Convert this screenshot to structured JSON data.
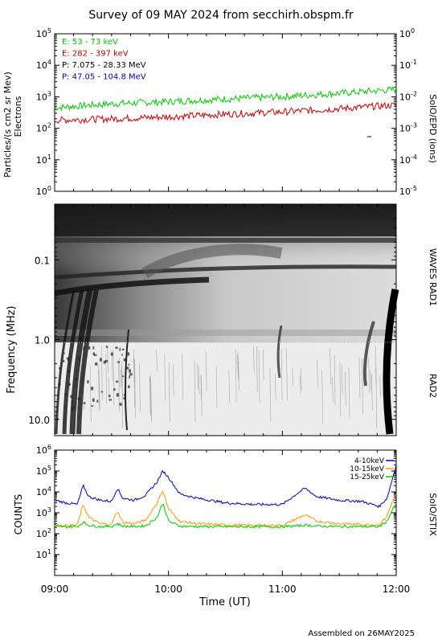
{
  "title": "Survey of 09 MAY 2024 from secchirh.obspm.fr",
  "footer": "Assembled on 26MAY2025",
  "colors": {
    "green": "#00cc00",
    "red": "#cc0000",
    "black": "#000000",
    "blue": "#0000cc",
    "orange": "#ff9900"
  },
  "chart_data": [
    {
      "type": "line",
      "ylabel": "Particles/(s cm2 sr Mev)",
      "ylabel2": "Electrons",
      "right_label": "SolO/EPD (ions)",
      "yscale": "log",
      "ylim": [
        1,
        100000
      ],
      "y_ticks": [
        "10^0",
        "10^1",
        "10^2",
        "10^3",
        "10^4",
        "10^5"
      ],
      "y2lim": [
        1e-05,
        1
      ],
      "y2_ticks": [
        "10^-5",
        "10^-4",
        "10^-3",
        "10^-2",
        "10^-1",
        "10^0"
      ],
      "xlim": [
        "09:00",
        "12:00"
      ],
      "legend": [
        {
          "name": "E: 53 - 73 keV",
          "color": "#00cc00"
        },
        {
          "name": "E: 282 - 397 keV",
          "color": "#cc0000"
        },
        {
          "name": "P: 7.075 - 28.33 MeV",
          "color": "#000000"
        },
        {
          "name": "P: 47.05 - 104.8 MeV",
          "color": "#0000cc"
        }
      ],
      "series": [
        {
          "name": "E: 53 - 73 keV",
          "x": [
            "09:00",
            "09:30",
            "10:00",
            "10:30",
            "11:00",
            "11:30",
            "12:00"
          ],
          "values": [
            450,
            600,
            700,
            850,
            1000,
            1300,
            1700
          ]
        },
        {
          "name": "E: 282 - 397 keV",
          "x": [
            "09:00",
            "09:30",
            "10:00",
            "10:30",
            "11:00",
            "11:30",
            "12:00"
          ],
          "values": [
            180,
            200,
            230,
            280,
            330,
            420,
            550
          ]
        }
      ]
    },
    {
      "type": "heatmap",
      "ylabel": "Frequency (MHz)",
      "right_labels": [
        "WAVES RAD1",
        "RAD2"
      ],
      "yscale": "log",
      "ylim": [
        0.02,
        16
      ],
      "y_ticks": [
        "0.1",
        "1.0",
        "10.0"
      ],
      "xlim": [
        "09:00",
        "12:00"
      ]
    },
    {
      "type": "line",
      "ylabel": "COUNTS",
      "right_label": "SolO/STIX",
      "xlabel": "Time (UT)",
      "yscale": "log",
      "ylim": [
        1,
        1000000
      ],
      "y_ticks": [
        "10^1",
        "10^2",
        "10^3",
        "10^4",
        "10^5",
        "10^6"
      ],
      "x_ticks": [
        "09:00",
        "10:00",
        "11:00",
        "12:00"
      ],
      "legend": [
        {
          "name": "4-10keV",
          "color": "#0000cc"
        },
        {
          "name": "10-15keV",
          "color": "#ff9900"
        },
        {
          "name": "15-25keV",
          "color": "#00cc00"
        }
      ],
      "series": [
        {
          "name": "4-10keV",
          "x_hours": [
            0,
            0.1,
            0.2,
            0.25,
            0.3,
            0.4,
            0.5,
            0.55,
            0.6,
            0.7,
            0.8,
            0.9,
            0.95,
            1.0,
            1.1,
            1.25,
            1.5,
            1.75,
            2.0,
            2.15,
            2.2,
            2.3,
            2.5,
            2.7,
            2.85,
            2.92,
            2.97,
            3.0
          ],
          "values": [
            4000,
            3000,
            2500,
            20000,
            6000,
            4000,
            3500,
            15000,
            5000,
            4000,
            7000,
            30000,
            100000,
            50000,
            8000,
            5000,
            3000,
            2500,
            2500,
            10000,
            15000,
            6000,
            4000,
            3500,
            2000,
            5000,
            50000,
            200000
          ]
        },
        {
          "name": "10-15keV",
          "x_hours": [
            0,
            0.1,
            0.2,
            0.25,
            0.3,
            0.4,
            0.5,
            0.55,
            0.6,
            0.7,
            0.8,
            0.9,
            0.95,
            1.0,
            1.1,
            1.25,
            1.5,
            1.75,
            2.0,
            2.15,
            2.2,
            2.3,
            2.5,
            2.7,
            2.85,
            2.92,
            2.97,
            3.0
          ],
          "values": [
            250,
            240,
            260,
            2500,
            600,
            300,
            280,
            1200,
            350,
            300,
            450,
            3000,
            12000,
            1500,
            400,
            300,
            260,
            250,
            250,
            600,
            800,
            400,
            300,
            280,
            260,
            700,
            4000,
            8000
          ]
        },
        {
          "name": "15-25keV",
          "x_hours": [
            0,
            0.1,
            0.2,
            0.25,
            0.3,
            0.4,
            0.5,
            0.55,
            0.6,
            0.7,
            0.8,
            0.9,
            0.95,
            1.0,
            1.1,
            1.25,
            1.5,
            1.75,
            2.0,
            2.15,
            2.2,
            2.3,
            2.5,
            2.7,
            2.85,
            2.92,
            2.97,
            3.0
          ],
          "values": [
            220,
            215,
            220,
            350,
            250,
            220,
            220,
            300,
            230,
            220,
            240,
            600,
            3000,
            400,
            230,
            220,
            215,
            215,
            215,
            240,
            260,
            230,
            220,
            220,
            215,
            400,
            1500,
            2500
          ]
        }
      ]
    }
  ]
}
